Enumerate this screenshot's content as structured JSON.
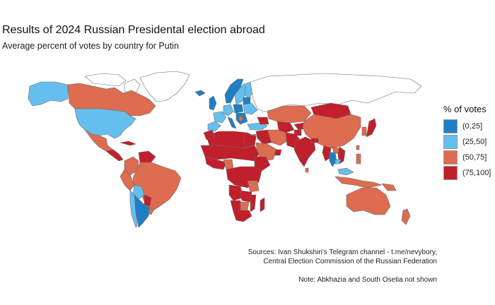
{
  "title": "Results of 2024 Russian Presidental election abroad",
  "subtitle": "Average percent of votes by country for Putin",
  "legend": {
    "title": "% of votes",
    "items": [
      {
        "label": "(0,25]",
        "color": "#1f7fc4"
      },
      {
        "label": "(25,50]",
        "color": "#65bfee"
      },
      {
        "label": "(50,75]",
        "color": "#dd6c50"
      },
      {
        "label": "(75,100]",
        "color": "#c11f2c"
      }
    ]
  },
  "sources": {
    "line1": "Sources: Ivan Shukshin's Telegram channel - t.me/nevybory,",
    "line2": "Central Election Commission of the Russian Federation"
  },
  "note": "Note: Abkhazia and South Osetia not shown",
  "colors": {
    "no_data": "#ffffff",
    "border": "#6b6b6b"
  }
}
